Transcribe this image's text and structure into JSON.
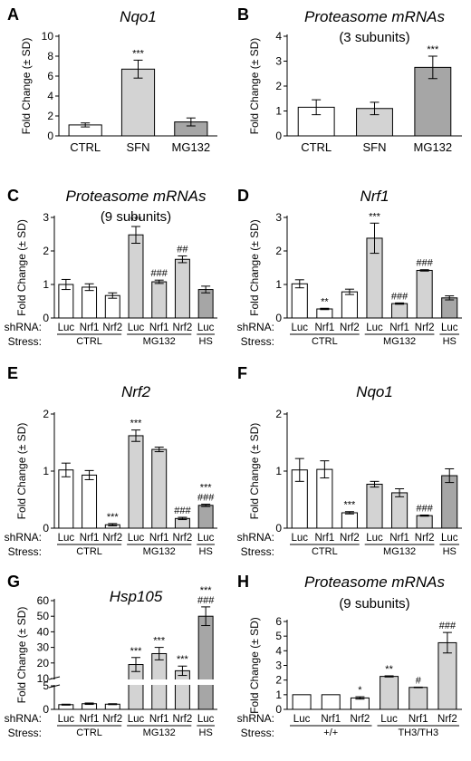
{
  "chart_data": [
    {
      "type": "bar",
      "panel": "A",
      "title": "Nqo1",
      "title_italic": true,
      "subtitle": "",
      "ylabel": "Fold Change (± SD)",
      "ylim": [
        0,
        10
      ],
      "yticks": [
        "0",
        "2",
        "4",
        "6",
        "8",
        "10"
      ],
      "categories": [
        "CTRL",
        "SFN",
        "MG132"
      ],
      "values": [
        1.1,
        6.7,
        1.4
      ],
      "errors": [
        0.2,
        0.9,
        0.4
      ],
      "fills": [
        "#ffffff",
        "#d3d3d3",
        "#a6a6a6"
      ],
      "annotations": [
        "",
        "***",
        ""
      ],
      "show_shrna_rows": false,
      "row_labels": {
        "shrna": "",
        "stress": ""
      },
      "groups": []
    },
    {
      "type": "bar",
      "panel": "B",
      "title": "Proteasome mRNAs",
      "title_italic": true,
      "subtitle": "(3 subunits)",
      "ylabel": "Fold Change (± SD)",
      "ylim": [
        0,
        4
      ],
      "yticks": [
        "0",
        "1",
        "2",
        "3",
        "4"
      ],
      "categories": [
        "CTRL",
        "SFN",
        "MG132"
      ],
      "values": [
        1.15,
        1.1,
        2.75
      ],
      "errors": [
        0.3,
        0.25,
        0.45
      ],
      "fills": [
        "#ffffff",
        "#d3d3d3",
        "#a6a6a6"
      ],
      "annotations": [
        "",
        "",
        "***"
      ],
      "show_shrna_rows": false,
      "row_labels": {
        "shrna": "",
        "stress": ""
      },
      "groups": []
    },
    {
      "type": "bar",
      "panel": "C",
      "title": "Proteasome mRNAs",
      "title_italic": true,
      "subtitle": "(9 subunits)",
      "ylabel": "Fold Change (± SD)",
      "ylim": [
        0,
        3
      ],
      "yticks": [
        "0",
        "1",
        "2",
        "3"
      ],
      "categories": [
        "Luc",
        "Nrf1",
        "Nrf2",
        "Luc",
        "Nrf1",
        "Nrf2",
        "Luc"
      ],
      "values": [
        1.0,
        0.92,
        0.67,
        2.48,
        1.08,
        1.75,
        0.85
      ],
      "errors": [
        0.15,
        0.1,
        0.08,
        0.25,
        0.05,
        0.1,
        0.1
      ],
      "fills": [
        "#ffffff",
        "#ffffff",
        "#ffffff",
        "#d3d3d3",
        "#d3d3d3",
        "#d3d3d3",
        "#a6a6a6"
      ],
      "annotations": [
        "",
        "",
        "",
        "***",
        "###",
        "##",
        ""
      ],
      "show_shrna_rows": true,
      "row_labels": {
        "shrna": "shRNA:",
        "stress": "Stress:"
      },
      "groups": [
        {
          "label": "CTRL",
          "from": 0,
          "to": 2
        },
        {
          "label": "MG132",
          "from": 3,
          "to": 5
        },
        {
          "label": "HS",
          "from": 6,
          "to": 6
        }
      ]
    },
    {
      "type": "bar",
      "panel": "D",
      "title": "Nrf1",
      "title_italic": true,
      "subtitle": "",
      "ylabel": "Fold Change (± SD)",
      "ylim": [
        0,
        3
      ],
      "yticks": [
        "0",
        "1",
        "2",
        "3"
      ],
      "categories": [
        "Luc",
        "Nrf1",
        "Nrf2",
        "Luc",
        "Nrf1",
        "Nrf2",
        "Luc"
      ],
      "values": [
        1.02,
        0.27,
        0.78,
        2.38,
        0.43,
        1.42,
        0.6
      ],
      "errors": [
        0.12,
        0.02,
        0.08,
        0.45,
        0.02,
        0.02,
        0.06
      ],
      "fills": [
        "#ffffff",
        "#ffffff",
        "#ffffff",
        "#d3d3d3",
        "#d3d3d3",
        "#d3d3d3",
        "#a6a6a6"
      ],
      "annotations": [
        "",
        "**",
        "",
        "***",
        "###",
        "###",
        ""
      ],
      "show_shrna_rows": true,
      "row_labels": {
        "shrna": "shRNA:",
        "stress": "Stress:"
      },
      "groups": [
        {
          "label": "CTRL",
          "from": 0,
          "to": 2
        },
        {
          "label": "MG132",
          "from": 3,
          "to": 5
        },
        {
          "label": "HS",
          "from": 6,
          "to": 6
        }
      ]
    },
    {
      "type": "bar",
      "panel": "E",
      "title": "Nrf2",
      "title_italic": true,
      "subtitle": "",
      "ylabel": "Fold Change (± SD)",
      "ylim": [
        0,
        2
      ],
      "yticks": [
        "0",
        "1",
        "2"
      ],
      "categories": [
        "Luc",
        "Nrf1",
        "Nrf2",
        "Luc",
        "Nrf1",
        "Nrf2",
        "Luc"
      ],
      "values": [
        1.02,
        0.93,
        0.06,
        1.62,
        1.38,
        0.17,
        0.4
      ],
      "errors": [
        0.12,
        0.08,
        0.02,
        0.1,
        0.04,
        0.02,
        0.02
      ],
      "fills": [
        "#ffffff",
        "#ffffff",
        "#ffffff",
        "#d3d3d3",
        "#d3d3d3",
        "#d3d3d3",
        "#a6a6a6"
      ],
      "annotations": [
        "",
        "",
        "***",
        "***",
        "",
        "###",
        "***\n###"
      ],
      "show_shrna_rows": true,
      "row_labels": {
        "shrna": "shRNA:",
        "stress": "Stress:"
      },
      "groups": [
        {
          "label": "CTRL",
          "from": 0,
          "to": 2
        },
        {
          "label": "MG132",
          "from": 3,
          "to": 5
        },
        {
          "label": "HS",
          "from": 6,
          "to": 6
        }
      ]
    },
    {
      "type": "bar",
      "panel": "F",
      "title": "Nqo1",
      "title_italic": true,
      "subtitle": "",
      "ylabel": "Fold Change (± SD)",
      "ylim": [
        0,
        2
      ],
      "yticks": [
        "0",
        "1",
        "2"
      ],
      "categories": [
        "Luc",
        "Nrf1",
        "Nrf2",
        "Luc",
        "Nrf1",
        "Nrf2",
        "Luc"
      ],
      "values": [
        1.02,
        1.03,
        0.27,
        0.77,
        0.62,
        0.22,
        0.92
      ],
      "errors": [
        0.2,
        0.15,
        0.02,
        0.05,
        0.07,
        0.01,
        0.12
      ],
      "fills": [
        "#ffffff",
        "#ffffff",
        "#ffffff",
        "#d3d3d3",
        "#d3d3d3",
        "#d3d3d3",
        "#a6a6a6"
      ],
      "annotations": [
        "",
        "",
        "***",
        "",
        "",
        "###",
        ""
      ],
      "show_shrna_rows": true,
      "row_labels": {
        "shrna": "shRNA:",
        "stress": "Stress:"
      },
      "groups": [
        {
          "label": "CTRL",
          "from": 0,
          "to": 2
        },
        {
          "label": "MG132",
          "from": 3,
          "to": 5
        },
        {
          "label": "HS",
          "from": 6,
          "to": 6
        }
      ]
    },
    {
      "type": "bar",
      "panel": "G",
      "title": "Hsp105",
      "title_italic": true,
      "subtitle": "",
      "ylabel": "Fold Change (± SD)",
      "axis_break": true,
      "ylim_lower": [
        0,
        5
      ],
      "yticks_lower": [
        "0",
        "5"
      ],
      "ylim_upper": [
        10,
        60
      ],
      "yticks_upper": [
        "10",
        "20",
        "30",
        "40",
        "50",
        "60"
      ],
      "categories": [
        "Luc",
        "Nrf1",
        "Nrf2",
        "Luc",
        "Nrf1",
        "Nrf2",
        "Luc"
      ],
      "values": [
        1.0,
        1.2,
        1.1,
        19,
        26,
        15,
        50
      ],
      "errors": [
        0.1,
        0.15,
        0.1,
        4.5,
        4,
        3,
        6
      ],
      "fills": [
        "#ffffff",
        "#ffffff",
        "#ffffff",
        "#d3d3d3",
        "#d3d3d3",
        "#d3d3d3",
        "#a6a6a6"
      ],
      "annotations": [
        "",
        "",
        "",
        "***",
        "***",
        "***",
        "***\n###"
      ],
      "show_shrna_rows": true,
      "row_labels": {
        "shrna": "shRNA:",
        "stress": "Stress:"
      },
      "groups": [
        {
          "label": "CTRL",
          "from": 0,
          "to": 2
        },
        {
          "label": "MG132",
          "from": 3,
          "to": 5
        },
        {
          "label": "HS",
          "from": 6,
          "to": 6
        }
      ]
    },
    {
      "type": "bar",
      "panel": "H",
      "title": "Proteasome mRNAs",
      "title_italic": true,
      "subtitle": "(9 subunits)",
      "ylabel": "Fold Change (± SD)",
      "ylim": [
        0,
        6
      ],
      "yticks": [
        "0",
        "1",
        "2",
        "3",
        "4",
        "5",
        "6"
      ],
      "categories": [
        "Luc",
        "Nrf1",
        "Nrf2",
        "Luc",
        "Nrf1",
        "Nrf2"
      ],
      "values": [
        1.0,
        1.0,
        0.78,
        2.25,
        1.5,
        4.55
      ],
      "errors": [
        0.0,
        0.0,
        0.08,
        0.04,
        0.02,
        0.7
      ],
      "fills": [
        "#ffffff",
        "#ffffff",
        "#ffffff",
        "#d3d3d3",
        "#d3d3d3",
        "#d3d3d3"
      ],
      "annotations": [
        "",
        "",
        "*",
        "**",
        "#",
        "###"
      ],
      "show_shrna_rows": true,
      "row_labels": {
        "shrna": "shRNA:",
        "stress": "Stress:"
      },
      "groups": [
        {
          "label": "+/+",
          "from": 0,
          "to": 2
        },
        {
          "label": "TH3/TH3",
          "from": 3,
          "to": 5
        }
      ]
    }
  ]
}
